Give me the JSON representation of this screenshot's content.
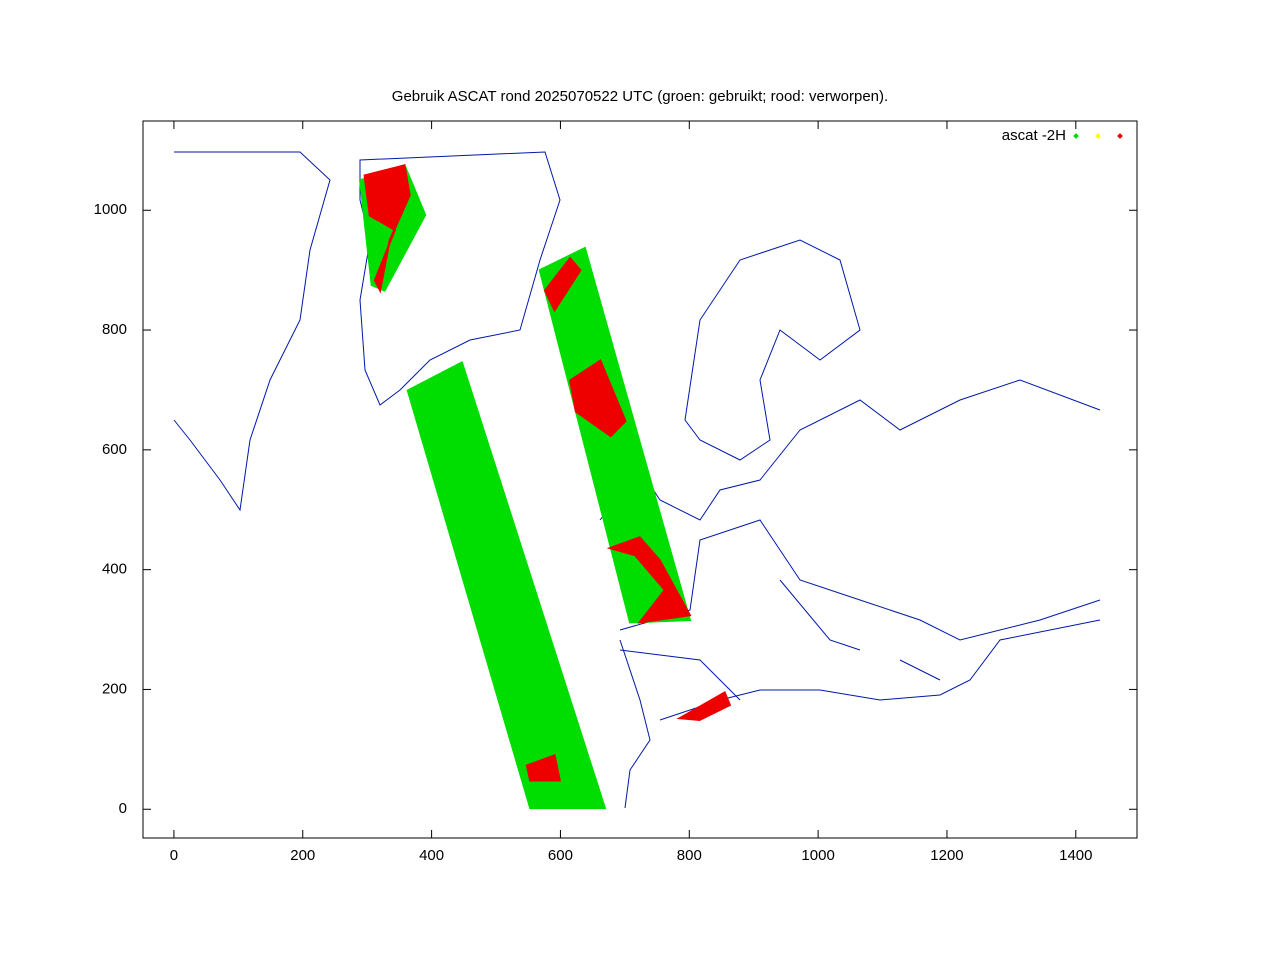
{
  "chart_data": {
    "type": "scatter",
    "title": "Gebruik ASCAT rond 2025070522 UTC (groen: gebruikt; rood: verworpen).",
    "xlim": [
      -48,
      1495
    ],
    "ylim": [
      -48,
      1149
    ],
    "xticks": [
      0,
      200,
      400,
      600,
      800,
      1000,
      1200,
      1400
    ],
    "yticks": [
      0,
      200,
      400,
      600,
      800,
      1000
    ],
    "legend": "top-right",
    "series": [
      {
        "name": "ascat -2H",
        "color": "#00dd00",
        "x": [
          363,
          447,
          669,
          553,
          null,
          568,
          638,
          801,
          708,
          null,
          289,
          358,
          390,
          327,
          307
        ],
        "y": [
          699,
          746,
          2,
          2,
          null,
          900,
          937,
          316,
          312,
          null,
          1050,
          1075,
          992,
          866,
          875
        ]
      },
      {
        "color": "#ffff00",
        "x": [],
        "y": []
      },
      {
        "color": "#ee0000",
        "x": [
          615,
          662,
          701,
          678,
          624,
          null,
          677,
          723,
          754,
          801,
          723,
          762,
          716,
          null,
          785,
          855,
          863,
          816,
          null,
          296,
          358,
          366,
          335,
          320,
          312,
          343,
          304,
          null,
          576,
          615,
          631,
          591,
          null,
          548,
          591,
          599,
          553
        ],
        "y": [
          716,
          749,
          648,
          623,
          664,
          null,
          436,
          454,
          416,
          324,
          312,
          366,
          424,
          null,
          152,
          195,
          174,
          149,
          null,
          1058,
          1075,
          1025,
          950,
          866,
          883,
          967,
          991,
          null,
          866,
          920,
          900,
          833,
          null,
          73,
          90,
          48,
          48
        ]
      }
    ]
  }
}
